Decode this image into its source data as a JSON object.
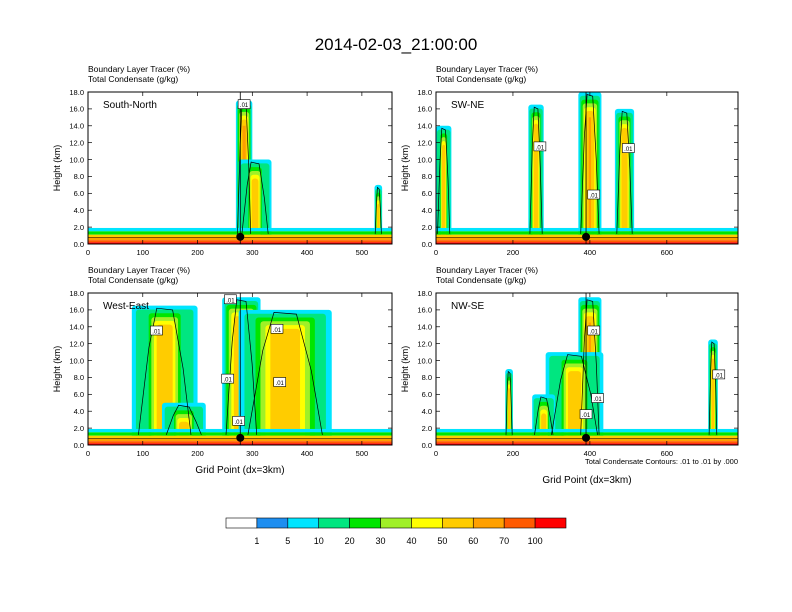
{
  "figure_title": "2014-02-03_21:00:00",
  "colorbar": {
    "colors": [
      "#ffffff",
      "#1e8ef0",
      "#00e5ff",
      "#00e680",
      "#00e600",
      "#a0f028",
      "#ffff00",
      "#ffcc00",
      "#ffa000",
      "#ff5a00",
      "#ff0000"
    ],
    "labels": [
      "1",
      "5",
      "10",
      "20",
      "30",
      "40",
      "50",
      "60",
      "70",
      "100"
    ]
  },
  "contour_note": "Total Condensate Contours: .01 to .01 by .000",
  "contour_label": ".01",
  "chart_data": [
    {
      "type": "heatmap",
      "title_line1": "Boundary Layer Tracer   (%)",
      "title_line2": "Total Condensate   (g/kg)",
      "panel_label": "South-North",
      "xlabel": "",
      "ylabel": "Height (km)",
      "xlim": [
        0,
        555
      ],
      "ylim": [
        0,
        18
      ],
      "xticks": [
        0,
        100,
        200,
        300,
        400,
        500
      ],
      "yticks": [
        "0.0",
        "2.0",
        "4.0",
        "6.0",
        "8.0",
        "10.0",
        "12.0",
        "14.0",
        "16.0",
        "18.0"
      ],
      "marker_x": 278,
      "plumes": [
        {
          "x_center": 285,
          "width": 30,
          "top_km": 17,
          "intensity": 0.7
        },
        {
          "x_center": 305,
          "width": 60,
          "top_km": 10,
          "intensity": 0.25
        },
        {
          "x_center": 530,
          "width": 14,
          "top_km": 7,
          "intensity": 0.5
        }
      ],
      "contour_label_positions": [
        [
          285,
          16.5
        ]
      ]
    },
    {
      "type": "heatmap",
      "title_line1": "Boundary Layer Tracer   (%)",
      "title_line2": "Total Condensate   (g/kg)",
      "panel_label": "SW-NE",
      "xlabel": "",
      "ylabel": "Height (km)",
      "xlim": [
        0,
        785
      ],
      "ylim": [
        0,
        18
      ],
      "xticks": [
        0,
        200,
        400,
        600
      ],
      "yticks": [
        "0.0",
        "2.0",
        "4.0",
        "6.0",
        "8.0",
        "10.0",
        "12.0",
        "14.0",
        "16.0",
        "18.0"
      ],
      "marker_x": 390,
      "plumes": [
        {
          "x_center": 260,
          "width": 40,
          "top_km": 16.5,
          "intensity": 0.5
        },
        {
          "x_center": 400,
          "width": 60,
          "top_km": 18,
          "intensity": 0.7
        },
        {
          "x_center": 490,
          "width": 50,
          "top_km": 16,
          "intensity": 0.55
        },
        {
          "x_center": 20,
          "width": 40,
          "top_km": 14,
          "intensity": 0.3
        }
      ],
      "contour_label_positions": [
        [
          270,
          11.5
        ],
        [
          410,
          5.8
        ],
        [
          500,
          11.3
        ]
      ]
    },
    {
      "type": "heatmap",
      "title_line1": "Boundary Layer Tracer   (%)",
      "title_line2": "Total Condensate   (g/kg)",
      "panel_label": "West-East",
      "xlabel": "Grid Point (dx=3km)",
      "ylabel": "Height (km)",
      "xlim": [
        0,
        555
      ],
      "ylim": [
        0,
        18
      ],
      "xticks": [
        0,
        100,
        200,
        300,
        400,
        500
      ],
      "yticks": [
        "0.0",
        "2.0",
        "4.0",
        "6.0",
        "8.0",
        "10.0",
        "12.0",
        "14.0",
        "16.0",
        "18.0"
      ],
      "marker_x": 278,
      "plumes": [
        {
          "x_center": 280,
          "width": 70,
          "top_km": 17.5,
          "intensity": 0.75
        },
        {
          "x_center": 360,
          "width": 170,
          "top_km": 16,
          "intensity": 0.55
        },
        {
          "x_center": 140,
          "width": 120,
          "top_km": 16.5,
          "intensity": 0.35
        },
        {
          "x_center": 175,
          "width": 80,
          "top_km": 5,
          "intensity": 0.3
        }
      ],
      "contour_label_positions": [
        [
          260,
          17.2
        ],
        [
          125,
          13.5
        ],
        [
          345,
          13.7
        ],
        [
          255,
          7.8
        ],
        [
          350,
          7.4
        ],
        [
          275,
          2.8
        ]
      ]
    },
    {
      "type": "heatmap",
      "title_line1": "Boundary Layer Tracer   (%)",
      "title_line2": "Total Condensate   (g/kg)",
      "panel_label": "NW-SE",
      "xlabel": "Grid Point (dx=3km)",
      "ylabel": "Height (km)",
      "xlim": [
        0,
        785
      ],
      "ylim": [
        0,
        18
      ],
      "xticks": [
        0,
        200,
        400,
        600
      ],
      "yticks": [
        "0.0",
        "2.0",
        "4.0",
        "6.0",
        "8.0",
        "10.0",
        "12.0",
        "14.0",
        "16.0",
        "18.0"
      ],
      "marker_x": 390,
      "plumes": [
        {
          "x_center": 400,
          "width": 60,
          "top_km": 17.5,
          "intensity": 0.75
        },
        {
          "x_center": 360,
          "width": 150,
          "top_km": 11,
          "intensity": 0.3
        },
        {
          "x_center": 190,
          "width": 20,
          "top_km": 9,
          "intensity": 0.45
        },
        {
          "x_center": 720,
          "width": 25,
          "top_km": 12.5,
          "intensity": 0.5
        },
        {
          "x_center": 280,
          "width": 60,
          "top_km": 6,
          "intensity": 0.3
        }
      ],
      "contour_label_positions": [
        [
          410,
          13.5
        ],
        [
          420,
          5.5
        ],
        [
          390,
          3.6
        ],
        [
          735,
          8.3
        ]
      ]
    }
  ]
}
